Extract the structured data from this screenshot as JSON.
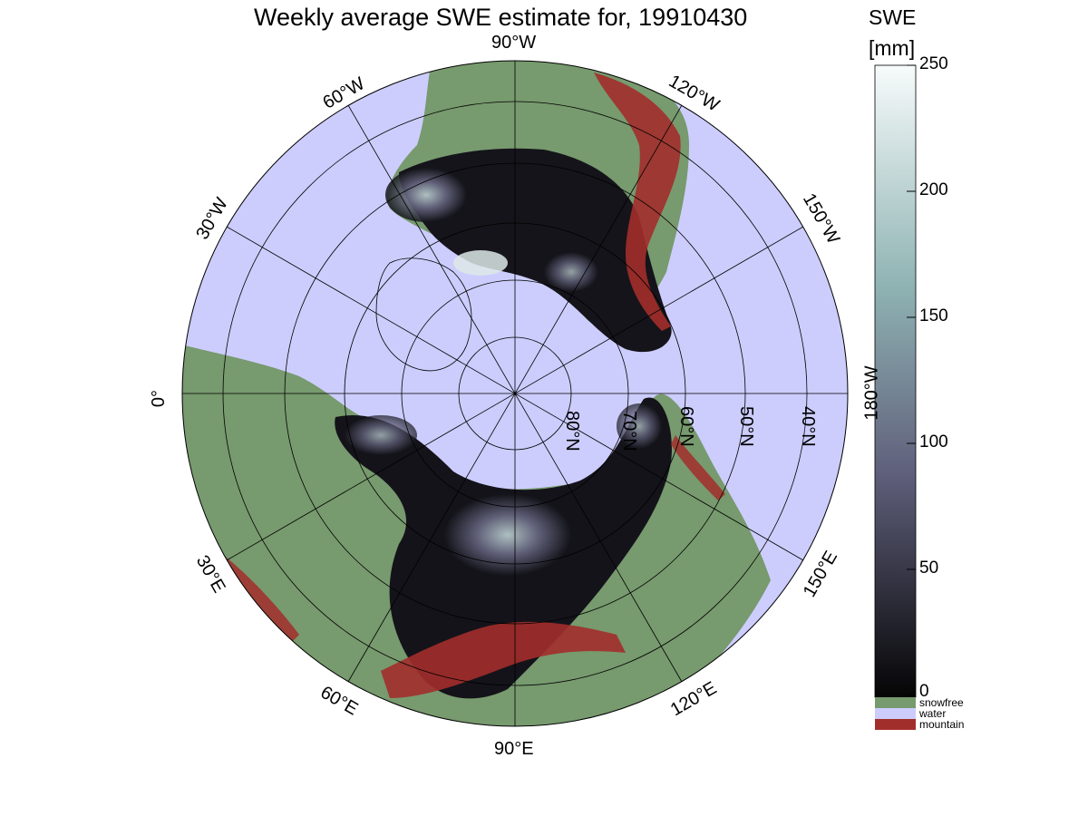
{
  "title": "Weekly average SWE estimate for, 19910430",
  "colorbar": {
    "title_line1": "SWE",
    "title_line2": "[mm]",
    "ticks": [
      "250",
      "200",
      "150",
      "100",
      "50",
      "0"
    ],
    "tick_values": [
      250,
      200,
      150,
      100,
      50,
      0
    ],
    "range": [
      0,
      250
    ],
    "colors": {
      "top": "#f7fbfb",
      "upper": "#8fb3b3",
      "mid": "#5e5e7a",
      "bottom": "#050505"
    },
    "categories": [
      {
        "label": "snowfree",
        "color": "#779a6e"
      },
      {
        "label": "water",
        "color": "#cccdfd"
      },
      {
        "label": "mountain",
        "color": "#a22e2b"
      }
    ]
  },
  "map": {
    "projection": "north polar stereographic",
    "ocean_color": "#cccdfd",
    "land_color": "#779a6e",
    "mountain_color": "#a22e2b",
    "meridian_labels": [
      {
        "text": "90°W",
        "lon": -90
      },
      {
        "text": "60°W",
        "lon": -60
      },
      {
        "text": "120°W",
        "lon": -120
      },
      {
        "text": "30°W",
        "lon": -30
      },
      {
        "text": "150°W",
        "lon": -150
      },
      {
        "text": "0°",
        "lon": 0
      },
      {
        "text": "180°W",
        "lon": 180
      },
      {
        "text": "30°E",
        "lon": 30
      },
      {
        "text": "150°E",
        "lon": 150
      },
      {
        "text": "60°E",
        "lon": 60
      },
      {
        "text": "120°E",
        "lon": 120
      },
      {
        "text": "90°E",
        "lon": 90
      }
    ],
    "parallel_labels": [
      {
        "text": "80°N",
        "lat": 80
      },
      {
        "text": "70°N",
        "lat": 70
      },
      {
        "text": "60°N",
        "lat": 60
      },
      {
        "text": "50°N",
        "lat": 50
      },
      {
        "text": "40°N",
        "lat": 40
      }
    ]
  }
}
